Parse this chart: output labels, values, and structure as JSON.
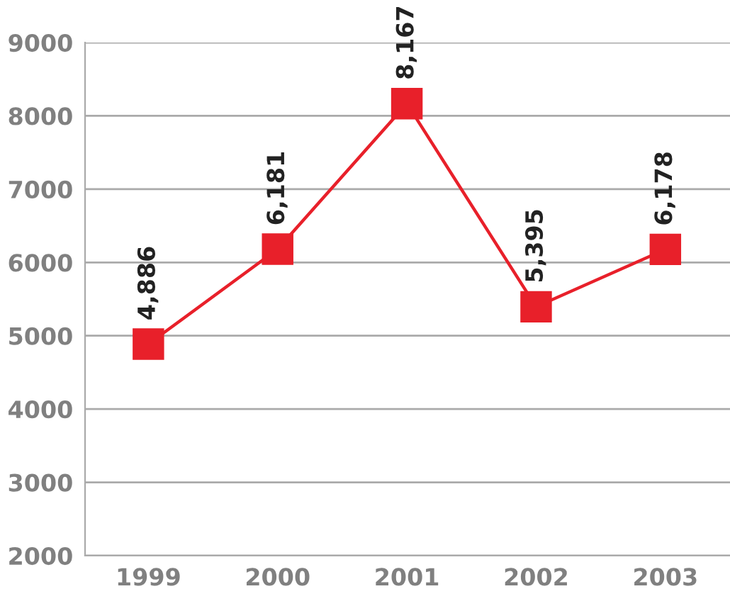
{
  "chart_data": {
    "type": "line",
    "categories": [
      "1999",
      "2000",
      "2001",
      "2002",
      "2003"
    ],
    "series": [
      {
        "color": "#e8202a",
        "values": [
          4886,
          6181,
          8167,
          5395,
          6178
        ],
        "value_labels": [
          "4,886",
          "6,181",
          "8,167",
          "5,395",
          "6,178"
        ]
      }
    ],
    "ylim": [
      2000,
      9000
    ],
    "yticks": [
      2000,
      3000,
      4000,
      5000,
      6000,
      7000,
      8000,
      9000
    ],
    "grid": "y",
    "marker": "square",
    "line_style": "solid"
  }
}
